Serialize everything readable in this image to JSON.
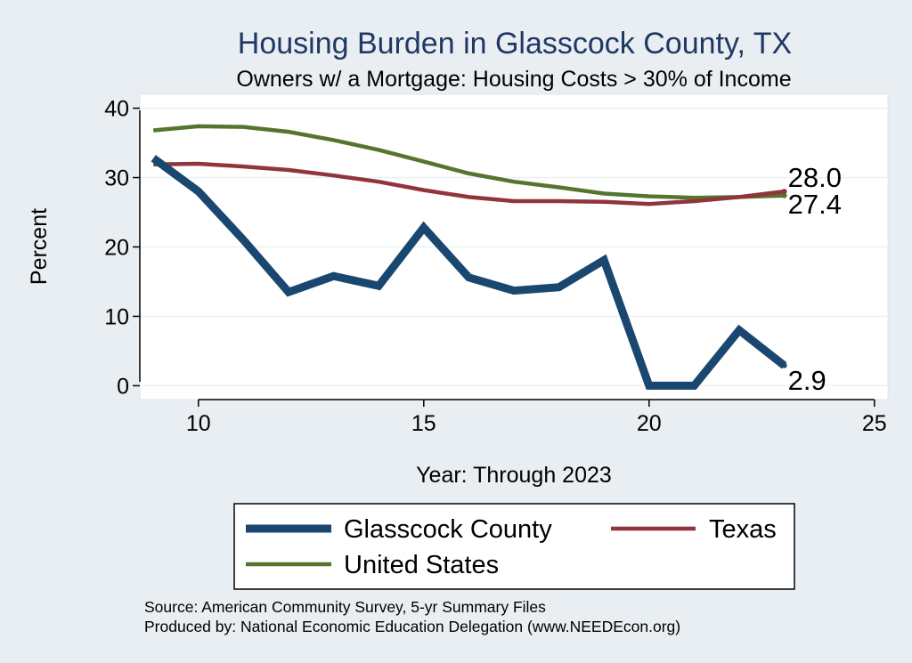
{
  "chart_data": {
    "type": "line",
    "title": "Housing Burden in Glasscock County, TX",
    "subtitle": "Owners w/ a Mortgage: Housing Costs > 30% of Income",
    "xlabel": "Year: Through 2023",
    "ylabel": "Percent",
    "xlim": [
      8.7,
      25.3
    ],
    "ylim": [
      -2,
      42
    ],
    "xticks": [
      10,
      15,
      20,
      25
    ],
    "yticks": [
      0,
      10,
      20,
      30,
      40
    ],
    "grid": true,
    "legend_position": "bottom",
    "series": [
      {
        "name": "Glasscock County",
        "color": "#1a476f",
        "x": [
          9,
          10,
          11,
          12,
          13,
          14,
          15,
          16,
          17,
          18,
          19,
          20,
          21,
          22,
          23
        ],
        "y": [
          32.8,
          28.0,
          21.0,
          13.5,
          15.8,
          14.4,
          22.8,
          15.6,
          13.7,
          14.2,
          18.1,
          0.0,
          0.0,
          8.0,
          2.9
        ],
        "end_label": "2.9"
      },
      {
        "name": "Texas",
        "color": "#90353b",
        "x": [
          9,
          10,
          11,
          12,
          13,
          14,
          15,
          16,
          17,
          18,
          19,
          20,
          21,
          22,
          23
        ],
        "y": [
          31.9,
          32.0,
          31.6,
          31.1,
          30.3,
          29.4,
          28.2,
          27.2,
          26.6,
          26.6,
          26.5,
          26.2,
          26.6,
          27.2,
          28.0
        ],
        "end_label": "28.0"
      },
      {
        "name": "United States",
        "color": "#55752f",
        "x": [
          9,
          10,
          11,
          12,
          13,
          14,
          15,
          16,
          17,
          18,
          19,
          20,
          21,
          22,
          23
        ],
        "y": [
          36.8,
          37.4,
          37.3,
          36.6,
          35.4,
          34.0,
          32.3,
          30.6,
          29.4,
          28.6,
          27.7,
          27.3,
          27.1,
          27.2,
          27.4
        ],
        "end_label": "27.4"
      }
    ]
  },
  "source_lines": [
    "Source: American Community Survey, 5-yr Summary Files",
    "Produced by: National Economic Education Delegation (www.NEEDEcon.org)"
  ]
}
